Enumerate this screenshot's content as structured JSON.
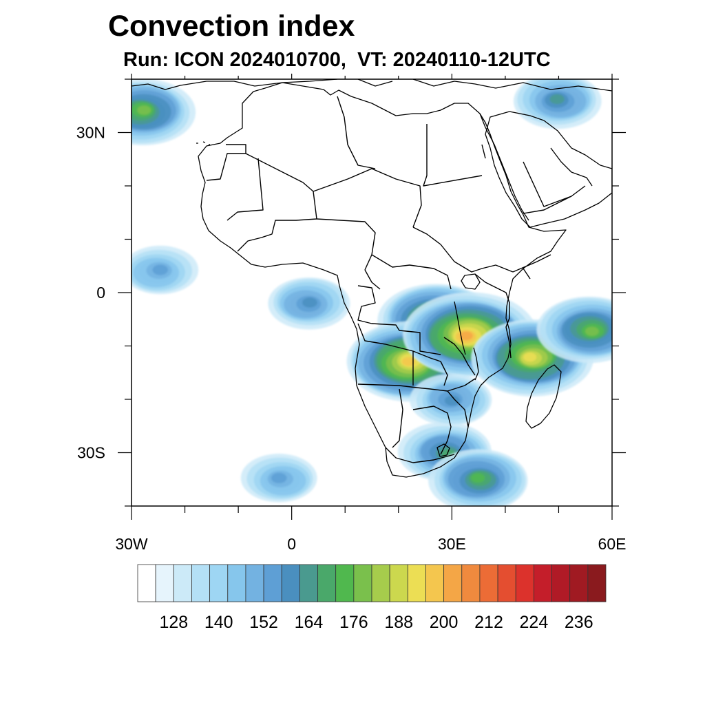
{
  "title": "Convection index",
  "subtitle": "Run: ICON 2024010700,  VT: 20240110-12UTC",
  "map": {
    "region": "Africa",
    "lon_range": [
      -30,
      60
    ],
    "lat_range": [
      -40,
      40
    ],
    "x_ticks": [
      {
        "value": -30,
        "label": "30W"
      },
      {
        "value": 0,
        "label": "0"
      },
      {
        "value": 30,
        "label": "30E"
      },
      {
        "value": 60,
        "label": "60E"
      }
    ],
    "y_ticks": [
      {
        "value": 30,
        "label": "30N"
      },
      {
        "value": 0,
        "label": "0"
      },
      {
        "value": -30,
        "label": "30S"
      }
    ],
    "minor_step_deg": 10
  },
  "colorbar": {
    "labels": [
      "128",
      "140",
      "152",
      "164",
      "176",
      "188",
      "200",
      "212",
      "224",
      "236"
    ],
    "colors": [
      "#ffffff",
      "#e6f4fc",
      "#cceaf8",
      "#b4e0f6",
      "#9ed6f3",
      "#86c6ec",
      "#73b2e1",
      "#5e9fd5",
      "#4a8fbf",
      "#4a9a8f",
      "#4aa86a",
      "#50b84e",
      "#7ac04c",
      "#a6cc4c",
      "#ccd84e",
      "#ecde54",
      "#f4c64e",
      "#f4a646",
      "#f08a3e",
      "#ec6c36",
      "#e44e30",
      "#dc322c",
      "#c41e2a",
      "#b01a26",
      "#a01a22",
      "#8a1a1e"
    ]
  },
  "convection_blobs": [
    {
      "lon": 27,
      "lat": -5,
      "level": 14,
      "color_ref": 13
    },
    {
      "lon": 22,
      "lat": -13,
      "level": 16,
      "color_ref": 15
    },
    {
      "lon": 33,
      "lat": -8,
      "level": 17,
      "color_ref": 16
    },
    {
      "lon": 45,
      "lat": -12,
      "level": 15,
      "color_ref": 14
    },
    {
      "lon": 56,
      "lat": -7,
      "level": 12,
      "color_ref": 11
    },
    {
      "lon": 29,
      "lat": -30,
      "level": 10,
      "color_ref": 9
    },
    {
      "lon": 35,
      "lat": -35,
      "level": 11,
      "color_ref": 10
    },
    {
      "lon": 3,
      "lat": -2,
      "level": 8,
      "color_ref": 7
    },
    {
      "lon": -25,
      "lat": 4,
      "level": 7,
      "color_ref": 6
    },
    {
      "lon": -28,
      "lat": 34,
      "level": 12,
      "color_ref": 11
    },
    {
      "lon": 50,
      "lat": 36,
      "level": 9,
      "color_ref": 8
    },
    {
      "lon": -2,
      "lat": -35,
      "level": 7,
      "color_ref": 6
    },
    {
      "lon": 30,
      "lat": -20,
      "level": 8,
      "color_ref": 7
    }
  ]
}
